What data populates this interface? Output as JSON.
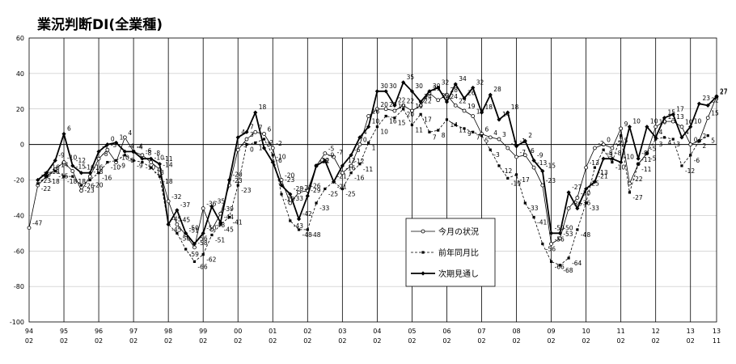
{
  "chart_data": {
    "type": "line",
    "title": "業況判断DI(全業種)",
    "ylim": [
      -100,
      60
    ],
    "yticks": [
      60,
      40,
      20,
      0,
      -20,
      -40,
      -60,
      -80,
      -100
    ],
    "x_start_year": 94,
    "x_start_month": 2,
    "x_end_year": 13,
    "x_end_month": 11,
    "x_ticks": [
      {
        "year": "94",
        "month": "02"
      },
      {
        "year": "95",
        "month": "02"
      },
      {
        "year": "96",
        "month": "02"
      },
      {
        "year": "97",
        "month": "02"
      },
      {
        "year": "98",
        "month": "02"
      },
      {
        "year": "99",
        "month": "02"
      },
      {
        "year": "00",
        "month": "02"
      },
      {
        "year": "01",
        "month": "02"
      },
      {
        "year": "02",
        "month": "02"
      },
      {
        "year": "03",
        "month": "02"
      },
      {
        "year": "04",
        "month": "02"
      },
      {
        "year": "05",
        "month": "02"
      },
      {
        "year": "06",
        "month": "02"
      },
      {
        "year": "07",
        "month": "02"
      },
      {
        "year": "08",
        "month": "02"
      },
      {
        "year": "09",
        "month": "02"
      },
      {
        "year": "10",
        "month": "02"
      },
      {
        "year": "11",
        "month": "02"
      },
      {
        "year": "12",
        "month": "02"
      },
      {
        "year": "13",
        "month": "02"
      },
      {
        "year": "13",
        "month": "11"
      }
    ],
    "grid": true,
    "legend": "bottom-center",
    "series": [
      {
        "name": "今月の状況",
        "marker": "open-circle",
        "values": [
          {
            "x": "94/02",
            "y": -47
          },
          {
            "x": "94/05",
            "y": -23
          },
          {
            "x": "94/08",
            "y": -18
          },
          {
            "x": "94/11",
            "y": -14
          },
          {
            "x": "95/02",
            "y": -10
          },
          {
            "x": "95/05",
            "y": -15
          },
          {
            "x": "95/08",
            "y": -26
          },
          {
            "x": "95/11",
            "y": -18
          },
          {
            "x": "96/02",
            "y": -8
          },
          {
            "x": "96/05",
            "y": -3
          },
          {
            "x": "96/08",
            "y": -10
          },
          {
            "x": "96/11",
            "y": 4
          },
          {
            "x": "97/02",
            "y": -4
          },
          {
            "x": "97/05",
            "y": -6
          },
          {
            "x": "97/08",
            "y": -10
          },
          {
            "x": "97/11",
            "y": -14
          },
          {
            "x": "98/02",
            "y": -32
          },
          {
            "x": "98/05",
            "y": -45
          },
          {
            "x": "98/08",
            "y": -51
          },
          {
            "x": "98/11",
            "y": -58
          },
          {
            "x": "99/02",
            "y": -36
          },
          {
            "x": "99/05",
            "y": -48
          },
          {
            "x": "99/08",
            "y": -39
          },
          {
            "x": "99/11",
            "y": -23
          },
          {
            "x": "00/02",
            "y": -3
          },
          {
            "x": "00/05",
            "y": 3
          },
          {
            "x": "00/08",
            "y": 7
          },
          {
            "x": "00/11",
            "y": 6
          },
          {
            "x": "01/02",
            "y": -2
          },
          {
            "x": "01/05",
            "y": -20
          },
          {
            "x": "01/08",
            "y": -33
          },
          {
            "x": "01/11",
            "y": -27
          },
          {
            "x": "02/02",
            "y": -26
          },
          {
            "x": "02/05",
            "y": -12
          },
          {
            "x": "02/08",
            "y": -5
          },
          {
            "x": "02/11",
            "y": -7
          },
          {
            "x": "03/02",
            "y": -16
          },
          {
            "x": "03/05",
            "y": -12
          },
          {
            "x": "03/08",
            "y": 0
          },
          {
            "x": "03/11",
            "y": 16
          },
          {
            "x": "04/02",
            "y": 20
          },
          {
            "x": "04/05",
            "y": 20
          },
          {
            "x": "04/08",
            "y": 19
          },
          {
            "x": "04/11",
            "y": 22
          },
          {
            "x": "05/02",
            "y": 19
          },
          {
            "x": "05/05",
            "y": 22
          },
          {
            "x": "05/08",
            "y": 29
          },
          {
            "x": "05/11",
            "y": 25
          },
          {
            "x": "06/02",
            "y": 28
          },
          {
            "x": "06/05",
            "y": 22
          },
          {
            "x": "06/08",
            "y": 19
          },
          {
            "x": "06/11",
            "y": 16
          },
          {
            "x": "07/02",
            "y": 6
          },
          {
            "x": "07/05",
            "y": 4
          },
          {
            "x": "07/08",
            "y": 3
          },
          {
            "x": "07/11",
            "y": -2
          },
          {
            "x": "08/02",
            "y": -7
          },
          {
            "x": "08/05",
            "y": -6
          },
          {
            "x": "08/08",
            "y": -13
          },
          {
            "x": "08/11",
            "y": -23
          },
          {
            "x": "09/02",
            "y": -56
          },
          {
            "x": "09/05",
            "y": -53
          },
          {
            "x": "09/08",
            "y": -36
          },
          {
            "x": "09/11",
            "y": -30
          },
          {
            "x": "10/02",
            "y": -13
          },
          {
            "x": "10/05",
            "y": -2
          },
          {
            "x": "10/08",
            "y": 0
          },
          {
            "x": "10/11",
            "y": -2
          },
          {
            "x": "11/02",
            "y": 9
          },
          {
            "x": "11/05",
            "y": -22
          },
          {
            "x": "11/08",
            "y": -11
          },
          {
            "x": "11/11",
            "y": -5
          },
          {
            "x": "12/02",
            "y": 10
          },
          {
            "x": "12/05",
            "y": 13
          },
          {
            "x": "12/08",
            "y": 13
          },
          {
            "x": "12/11",
            "y": 10
          },
          {
            "x": "13/02",
            "y": 0
          },
          {
            "x": "13/05",
            "y": 2
          },
          {
            "x": "13/08",
            "y": 15
          },
          {
            "x": "13/11",
            "y": 27
          }
        ]
      },
      {
        "name": "前年同月比",
        "marker": "filled-square",
        "values": [
          {
            "x": "94/05",
            "y": -22
          },
          {
            "x": "94/08",
            "y": -18
          },
          {
            "x": "94/11",
            "y": -15
          },
          {
            "x": "95/02",
            "y": -18
          },
          {
            "x": "95/05",
            "y": -18
          },
          {
            "x": "95/08",
            "y": -23
          },
          {
            "x": "95/11",
            "y": -20
          },
          {
            "x": "96/02",
            "y": -16
          },
          {
            "x": "96/05",
            "y": -10
          },
          {
            "x": "96/08",
            "y": -9
          },
          {
            "x": "96/11",
            "y": -6
          },
          {
            "x": "97/02",
            "y": -9
          },
          {
            "x": "97/05",
            "y": -10
          },
          {
            "x": "97/08",
            "y": -13
          },
          {
            "x": "97/11",
            "y": -18
          },
          {
            "x": "98/02",
            "y": -45
          },
          {
            "x": "98/05",
            "y": -50
          },
          {
            "x": "98/08",
            "y": -59
          },
          {
            "x": "98/11",
            "y": -66
          },
          {
            "x": "99/02",
            "y": -62
          },
          {
            "x": "99/05",
            "y": -51
          },
          {
            "x": "99/08",
            "y": -45
          },
          {
            "x": "99/11",
            "y": -41
          },
          {
            "x": "00/02",
            "y": -23
          },
          {
            "x": "00/05",
            "y": 0
          },
          {
            "x": "00/08",
            "y": 1
          },
          {
            "x": "00/11",
            "y": 3
          },
          {
            "x": "01/02",
            "y": -6
          },
          {
            "x": "01/05",
            "y": -28
          },
          {
            "x": "01/08",
            "y": -43
          },
          {
            "x": "01/11",
            "y": -48
          },
          {
            "x": "02/02",
            "y": -48
          },
          {
            "x": "02/05",
            "y": -33
          },
          {
            "x": "02/08",
            "y": -25
          },
          {
            "x": "02/11",
            "y": -21
          },
          {
            "x": "03/02",
            "y": -25
          },
          {
            "x": "03/05",
            "y": -16
          },
          {
            "x": "03/08",
            "y": -11
          },
          {
            "x": "03/11",
            "y": 1
          },
          {
            "x": "04/02",
            "y": 10
          },
          {
            "x": "04/05",
            "y": 16
          },
          {
            "x": "04/08",
            "y": 15
          },
          {
            "x": "04/11",
            "y": 20
          },
          {
            "x": "05/02",
            "y": 11
          },
          {
            "x": "05/05",
            "y": 17
          },
          {
            "x": "05/08",
            "y": 7
          },
          {
            "x": "05/11",
            "y": 8
          },
          {
            "x": "06/02",
            "y": 14
          },
          {
            "x": "06/05",
            "y": 11
          },
          {
            "x": "06/08",
            "y": 9
          },
          {
            "x": "06/11",
            "y": 7
          },
          {
            "x": "07/02",
            "y": 5
          },
          {
            "x": "07/05",
            "y": -3
          },
          {
            "x": "07/08",
            "y": -12
          },
          {
            "x": "07/11",
            "y": -19
          },
          {
            "x": "08/02",
            "y": -17
          },
          {
            "x": "08/05",
            "y": -33
          },
          {
            "x": "08/08",
            "y": -41
          },
          {
            "x": "08/11",
            "y": -56
          },
          {
            "x": "09/02",
            "y": -66
          },
          {
            "x": "09/05",
            "y": -68
          },
          {
            "x": "09/08",
            "y": -64
          },
          {
            "x": "09/11",
            "y": -48
          },
          {
            "x": "10/02",
            "y": -33
          },
          {
            "x": "10/05",
            "y": -13
          },
          {
            "x": "10/08",
            "y": -3
          },
          {
            "x": "10/11",
            "y": -10
          },
          {
            "x": "11/02",
            "y": 5
          },
          {
            "x": "11/05",
            "y": -27
          },
          {
            "x": "11/08",
            "y": -11
          },
          {
            "x": "11/11",
            "y": -5
          },
          {
            "x": "12/02",
            "y": 3
          },
          {
            "x": "12/05",
            "y": 4
          },
          {
            "x": "12/08",
            "y": 3
          },
          {
            "x": "12/11",
            "y": -12
          },
          {
            "x": "13/02",
            "y": -6
          },
          {
            "x": "13/05",
            "y": 2
          },
          {
            "x": "13/08",
            "y": 5
          }
        ]
      },
      {
        "name": "次期見通し",
        "marker": "filled-diamond",
        "values": [
          {
            "x": "94/05",
            "y": -20
          },
          {
            "x": "94/08",
            "y": -16
          },
          {
            "x": "94/11",
            "y": -9
          },
          {
            "x": "95/02",
            "y": 6
          },
          {
            "x": "95/05",
            "y": -12
          },
          {
            "x": "95/08",
            "y": -16
          },
          {
            "x": "95/11",
            "y": -16
          },
          {
            "x": "96/02",
            "y": -4
          },
          {
            "x": "96/05",
            "y": 0
          },
          {
            "x": "96/08",
            "y": 1
          },
          {
            "x": "96/11",
            "y": -4
          },
          {
            "x": "97/02",
            "y": -4
          },
          {
            "x": "97/05",
            "y": -8
          },
          {
            "x": "97/08",
            "y": -8
          },
          {
            "x": "97/11",
            "y": -11
          },
          {
            "x": "98/02",
            "y": -45
          },
          {
            "x": "98/05",
            "y": -37
          },
          {
            "x": "98/08",
            "y": -50
          },
          {
            "x": "98/11",
            "y": -56
          },
          {
            "x": "99/02",
            "y": -50
          },
          {
            "x": "99/05",
            "y": -35
          },
          {
            "x": "99/08",
            "y": -44
          },
          {
            "x": "99/11",
            "y": -20
          },
          {
            "x": "00/02",
            "y": 4
          },
          {
            "x": "00/05",
            "y": 7
          },
          {
            "x": "00/08",
            "y": 18
          },
          {
            "x": "00/11",
            "y": -2
          },
          {
            "x": "01/02",
            "y": -10
          },
          {
            "x": "01/05",
            "y": -23
          },
          {
            "x": "01/08",
            "y": -28
          },
          {
            "x": "01/11",
            "y": -42
          },
          {
            "x": "02/02",
            "y": -29
          },
          {
            "x": "02/05",
            "y": -12
          },
          {
            "x": "02/08",
            "y": -9
          },
          {
            "x": "02/11",
            "y": -21
          },
          {
            "x": "03/02",
            "y": -12
          },
          {
            "x": "03/05",
            "y": -6
          },
          {
            "x": "03/08",
            "y": 4
          },
          {
            "x": "03/11",
            "y": 10
          },
          {
            "x": "04/02",
            "y": 30
          },
          {
            "x": "04/05",
            "y": 30
          },
          {
            "x": "04/08",
            "y": 22
          },
          {
            "x": "04/11",
            "y": 35
          },
          {
            "x": "05/02",
            "y": 30
          },
          {
            "x": "05/05",
            "y": 24
          },
          {
            "x": "05/08",
            "y": 30
          },
          {
            "x": "05/11",
            "y": 32
          },
          {
            "x": "06/02",
            "y": 24
          },
          {
            "x": "06/05",
            "y": 34
          },
          {
            "x": "06/08",
            "y": 26
          },
          {
            "x": "06/11",
            "y": 32
          },
          {
            "x": "07/02",
            "y": 18
          },
          {
            "x": "07/05",
            "y": 28
          },
          {
            "x": "07/08",
            "y": 14
          },
          {
            "x": "07/11",
            "y": 18
          },
          {
            "x": "08/02",
            "y": -1
          },
          {
            "x": "08/05",
            "y": 2
          },
          {
            "x": "08/08",
            "y": -9
          },
          {
            "x": "08/11",
            "y": -15
          },
          {
            "x": "09/02",
            "y": -50
          },
          {
            "x": "09/05",
            "y": -50
          },
          {
            "x": "09/08",
            "y": -27
          },
          {
            "x": "09/11",
            "y": -36
          },
          {
            "x": "10/02",
            "y": -25
          },
          {
            "x": "10/05",
            "y": -21
          },
          {
            "x": "10/08",
            "y": -8
          },
          {
            "x": "10/11",
            "y": -8
          },
          {
            "x": "11/02",
            "y": -10
          },
          {
            "x": "11/05",
            "y": 10
          },
          {
            "x": "11/08",
            "y": -8
          },
          {
            "x": "11/11",
            "y": 10
          },
          {
            "x": "12/02",
            "y": 4
          },
          {
            "x": "12/05",
            "y": 15
          },
          {
            "x": "12/08",
            "y": 17
          },
          {
            "x": "12/11",
            "y": 4
          },
          {
            "x": "13/02",
            "y": 10
          },
          {
            "x": "13/05",
            "y": 23
          },
          {
            "x": "13/08",
            "y": 22
          },
          {
            "x": "13/11",
            "y": 27
          }
        ]
      }
    ]
  },
  "style": {
    "line_color": "#000000",
    "grid_color": "#b0b0b0",
    "axis_color": "#000000"
  }
}
